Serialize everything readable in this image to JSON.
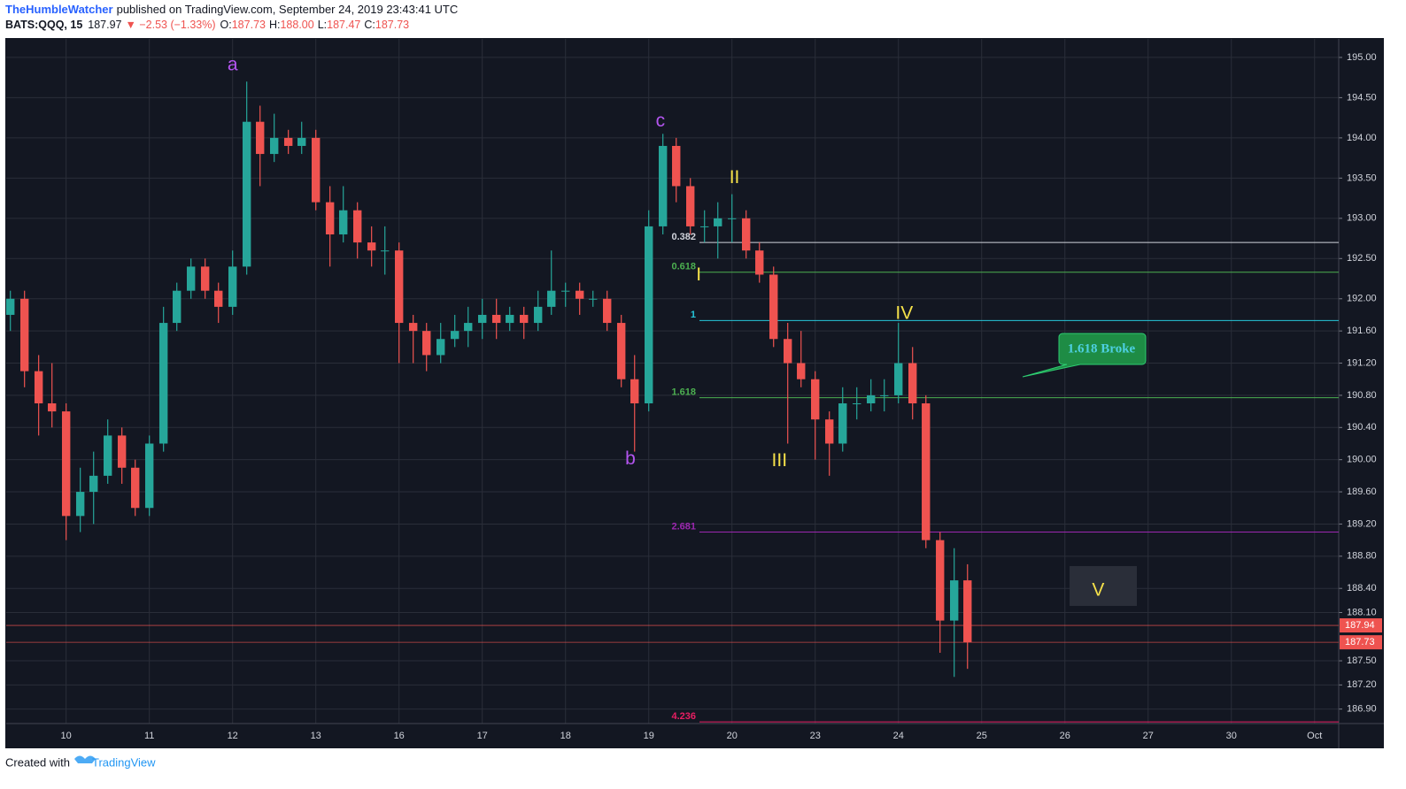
{
  "header": {
    "author": "TheHumbleWatcher",
    "published": "published on TradingView.com, September 24, 2019 23:43:41 UTC",
    "symbol": "BATS:QQQ, 15",
    "last": "187.97",
    "change": "▼ −2.53 (−1.33%)",
    "open_label": "O:",
    "open": "187.73",
    "high_label": "H:",
    "high": "188.00",
    "low_label": "L:",
    "low": "187.47",
    "close_label": "C:",
    "close": "187.73"
  },
  "footer": {
    "created": "Created with",
    "brand": "TradingView"
  },
  "chart_data": {
    "type": "candlestick",
    "up_color": "#26a69a",
    "down_color": "#ef5350",
    "grid": true,
    "x": [
      -0.67,
      -0.5,
      -0.33,
      -0.17,
      0,
      0.17,
      0.33,
      0.5,
      0.67,
      0.83,
      1,
      1.17,
      1.33,
      1.5,
      1.67,
      1.83,
      2,
      2.17,
      2.33,
      2.5,
      2.67,
      2.83,
      3,
      3.17,
      3.33,
      3.5,
      3.67,
      3.83,
      4,
      4.17,
      4.33,
      4.5,
      4.67,
      4.83,
      5,
      5.17,
      5.33,
      5.5,
      5.67,
      5.83,
      6,
      6.17,
      6.33,
      6.5,
      6.67,
      6.83,
      7,
      7.17,
      7.33,
      7.5,
      7.67,
      7.83,
      8,
      8.17,
      8.33,
      8.5,
      8.67,
      8.83,
      9,
      9.17,
      9.33,
      9.5,
      9.67,
      9.83,
      10,
      10.17,
      10.33,
      10.5,
      10.67,
      10.83
    ],
    "open": [
      191.8,
      192.0,
      191.1,
      190.7,
      190.6,
      189.3,
      189.6,
      189.8,
      190.3,
      189.9,
      189.4,
      190.2,
      191.7,
      192.1,
      192.4,
      192.1,
      191.9,
      192.4,
      194.2,
      193.8,
      194.0,
      193.9,
      194.0,
      193.2,
      192.8,
      193.1,
      192.7,
      192.6,
      192.6,
      191.7,
      191.6,
      191.3,
      191.5,
      191.6,
      191.7,
      191.8,
      191.7,
      191.8,
      191.7,
      191.9,
      192.1,
      192.1,
      192.0,
      192.0,
      191.7,
      191.0,
      190.7,
      192.9,
      193.9,
      193.4,
      192.9,
      192.9,
      193.0,
      193.0,
      192.6,
      192.3,
      191.5,
      191.2,
      191.0,
      190.5,
      190.2,
      190.7,
      190.7,
      190.8,
      190.8,
      191.2,
      190.7,
      189.0,
      188.0,
      188.5
    ],
    "high": [
      192.1,
      192.1,
      191.3,
      191.2,
      190.7,
      189.9,
      190.1,
      190.5,
      190.4,
      190.0,
      190.3,
      191.9,
      192.2,
      192.5,
      192.5,
      192.2,
      192.6,
      194.7,
      194.4,
      194.3,
      194.1,
      194.2,
      194.1,
      193.4,
      193.4,
      193.2,
      192.9,
      192.9,
      192.7,
      191.8,
      191.7,
      191.7,
      191.8,
      191.9,
      192.0,
      192.0,
      191.9,
      191.9,
      192.1,
      192.6,
      192.2,
      192.2,
      192.1,
      192.1,
      191.8,
      191.3,
      193.1,
      194.05,
      194.0,
      193.5,
      193.1,
      193.2,
      193.3,
      193.1,
      192.7,
      192.4,
      191.7,
      191.6,
      191.1,
      190.6,
      190.9,
      190.9,
      191.0,
      191.0,
      191.7,
      191.4,
      190.8,
      189.1,
      188.9,
      188.7
    ],
    "low": [
      191.6,
      190.9,
      190.3,
      190.4,
      189.0,
      189.1,
      189.2,
      189.7,
      189.7,
      189.3,
      189.3,
      190.1,
      191.6,
      192.0,
      192.0,
      191.7,
      191.8,
      192.3,
      193.4,
      193.7,
      193.8,
      193.8,
      193.1,
      192.4,
      192.7,
      192.5,
      192.4,
      192.3,
      191.2,
      191.2,
      191.1,
      191.2,
      191.4,
      191.4,
      191.5,
      191.5,
      191.6,
      191.5,
      191.6,
      191.8,
      191.9,
      191.8,
      191.9,
      191.6,
      190.9,
      190.1,
      190.6,
      192.8,
      193.2,
      192.8,
      192.7,
      192.5,
      192.7,
      192.5,
      192.2,
      191.4,
      190.2,
      190.9,
      190.0,
      189.8,
      190.1,
      190.5,
      190.6,
      190.6,
      190.7,
      190.5,
      188.9,
      187.6,
      187.3,
      187.4
    ],
    "close": [
      192.0,
      191.1,
      190.7,
      190.6,
      189.3,
      189.6,
      189.8,
      190.3,
      189.9,
      189.4,
      190.2,
      191.7,
      192.1,
      192.4,
      192.1,
      191.9,
      192.4,
      194.2,
      193.8,
      194.0,
      193.9,
      194.0,
      193.2,
      192.8,
      193.1,
      192.7,
      192.6,
      192.6,
      191.7,
      191.6,
      191.3,
      191.5,
      191.6,
      191.7,
      191.8,
      191.7,
      191.8,
      191.7,
      191.9,
      192.1,
      192.1,
      192.0,
      192.0,
      191.7,
      191.0,
      190.7,
      192.9,
      193.9,
      193.4,
      192.9,
      192.9,
      193.0,
      193.0,
      192.6,
      192.3,
      191.5,
      191.2,
      191.0,
      190.5,
      190.2,
      190.7,
      190.7,
      190.8,
      190.8,
      191.2,
      190.7,
      189.0,
      188.0,
      188.5,
      187.73
    ],
    "xlim": [
      -0.72,
      15.29
    ],
    "xticks": [
      {
        "value": 0,
        "label": "10"
      },
      {
        "value": 1,
        "label": "11"
      },
      {
        "value": 2,
        "label": "12"
      },
      {
        "value": 3,
        "label": "13"
      },
      {
        "value": 4,
        "label": "16"
      },
      {
        "value": 5,
        "label": "17"
      },
      {
        "value": 6,
        "label": "18"
      },
      {
        "value": 7,
        "label": "19"
      },
      {
        "value": 8,
        "label": "20"
      },
      {
        "value": 9,
        "label": "23"
      },
      {
        "value": 10,
        "label": "24"
      },
      {
        "value": 11,
        "label": "25"
      },
      {
        "value": 12,
        "label": "26"
      },
      {
        "value": 13,
        "label": "27"
      },
      {
        "value": 14,
        "label": "30"
      },
      {
        "value": 15,
        "label": "Oct"
      }
    ],
    "ylim": [
      186.72,
      195.23
    ],
    "yticks": [
      {
        "value": 195,
        "label": "195.00"
      },
      {
        "value": 194.5,
        "label": "194.50"
      },
      {
        "value": 194,
        "label": "194.00"
      },
      {
        "value": 193.5,
        "label": "193.50"
      },
      {
        "value": 193,
        "label": "193.00"
      },
      {
        "value": 192.5,
        "label": "192.50"
      },
      {
        "value": 192,
        "label": "192.00"
      },
      {
        "value": 191.6,
        "label": "191.60"
      },
      {
        "value": 191.2,
        "label": "191.20"
      },
      {
        "value": 190.8,
        "label": "190.80"
      },
      {
        "value": 190.4,
        "label": "190.40"
      },
      {
        "value": 190,
        "label": "190.00"
      },
      {
        "value": 189.6,
        "label": "189.60"
      },
      {
        "value": 189.2,
        "label": "189.20"
      },
      {
        "value": 188.8,
        "label": "188.80"
      },
      {
        "value": 188.4,
        "label": "188.40"
      },
      {
        "value": 188.1,
        "label": "188.10"
      },
      {
        "value": 187.5,
        "label": "187.50"
      },
      {
        "value": 187.2,
        "label": "187.20"
      },
      {
        "value": 186.9,
        "label": "186.90"
      }
    ],
    "fib_levels": [
      {
        "label": "0.382",
        "price": 192.7,
        "color": "#d1d4dc"
      },
      {
        "label": "0.618",
        "price": 192.33,
        "color": "#4caf50"
      },
      {
        "label": "1",
        "price": 191.73,
        "color": "#26c6da"
      },
      {
        "label": "1.618",
        "price": 190.77,
        "color": "#4caf50"
      },
      {
        "label": "2.681",
        "price": 189.1,
        "color": "#9c27b0"
      },
      {
        "label": "4.236",
        "price": 186.74,
        "color": "#e91e63"
      }
    ],
    "price_tags": [
      {
        "value": 187.94,
        "color": "#ef5350"
      },
      {
        "value": 187.73,
        "color": "#ef5350"
      }
    ],
    "wave_labels": [
      {
        "text": "a",
        "color": "#b455f0"
      },
      {
        "text": "b",
        "color": "#b455f0"
      },
      {
        "text": "c",
        "color": "#b455f0"
      },
      {
        "text": "I",
        "color": "#f5e14a"
      },
      {
        "text": "II",
        "color": "#f5e14a"
      },
      {
        "text": "III",
        "color": "#f5e14a"
      },
      {
        "text": "IV",
        "color": "#f5e14a"
      },
      {
        "text": "V",
        "color": "#f5e14a"
      }
    ],
    "callout": "1.618 Broke"
  }
}
